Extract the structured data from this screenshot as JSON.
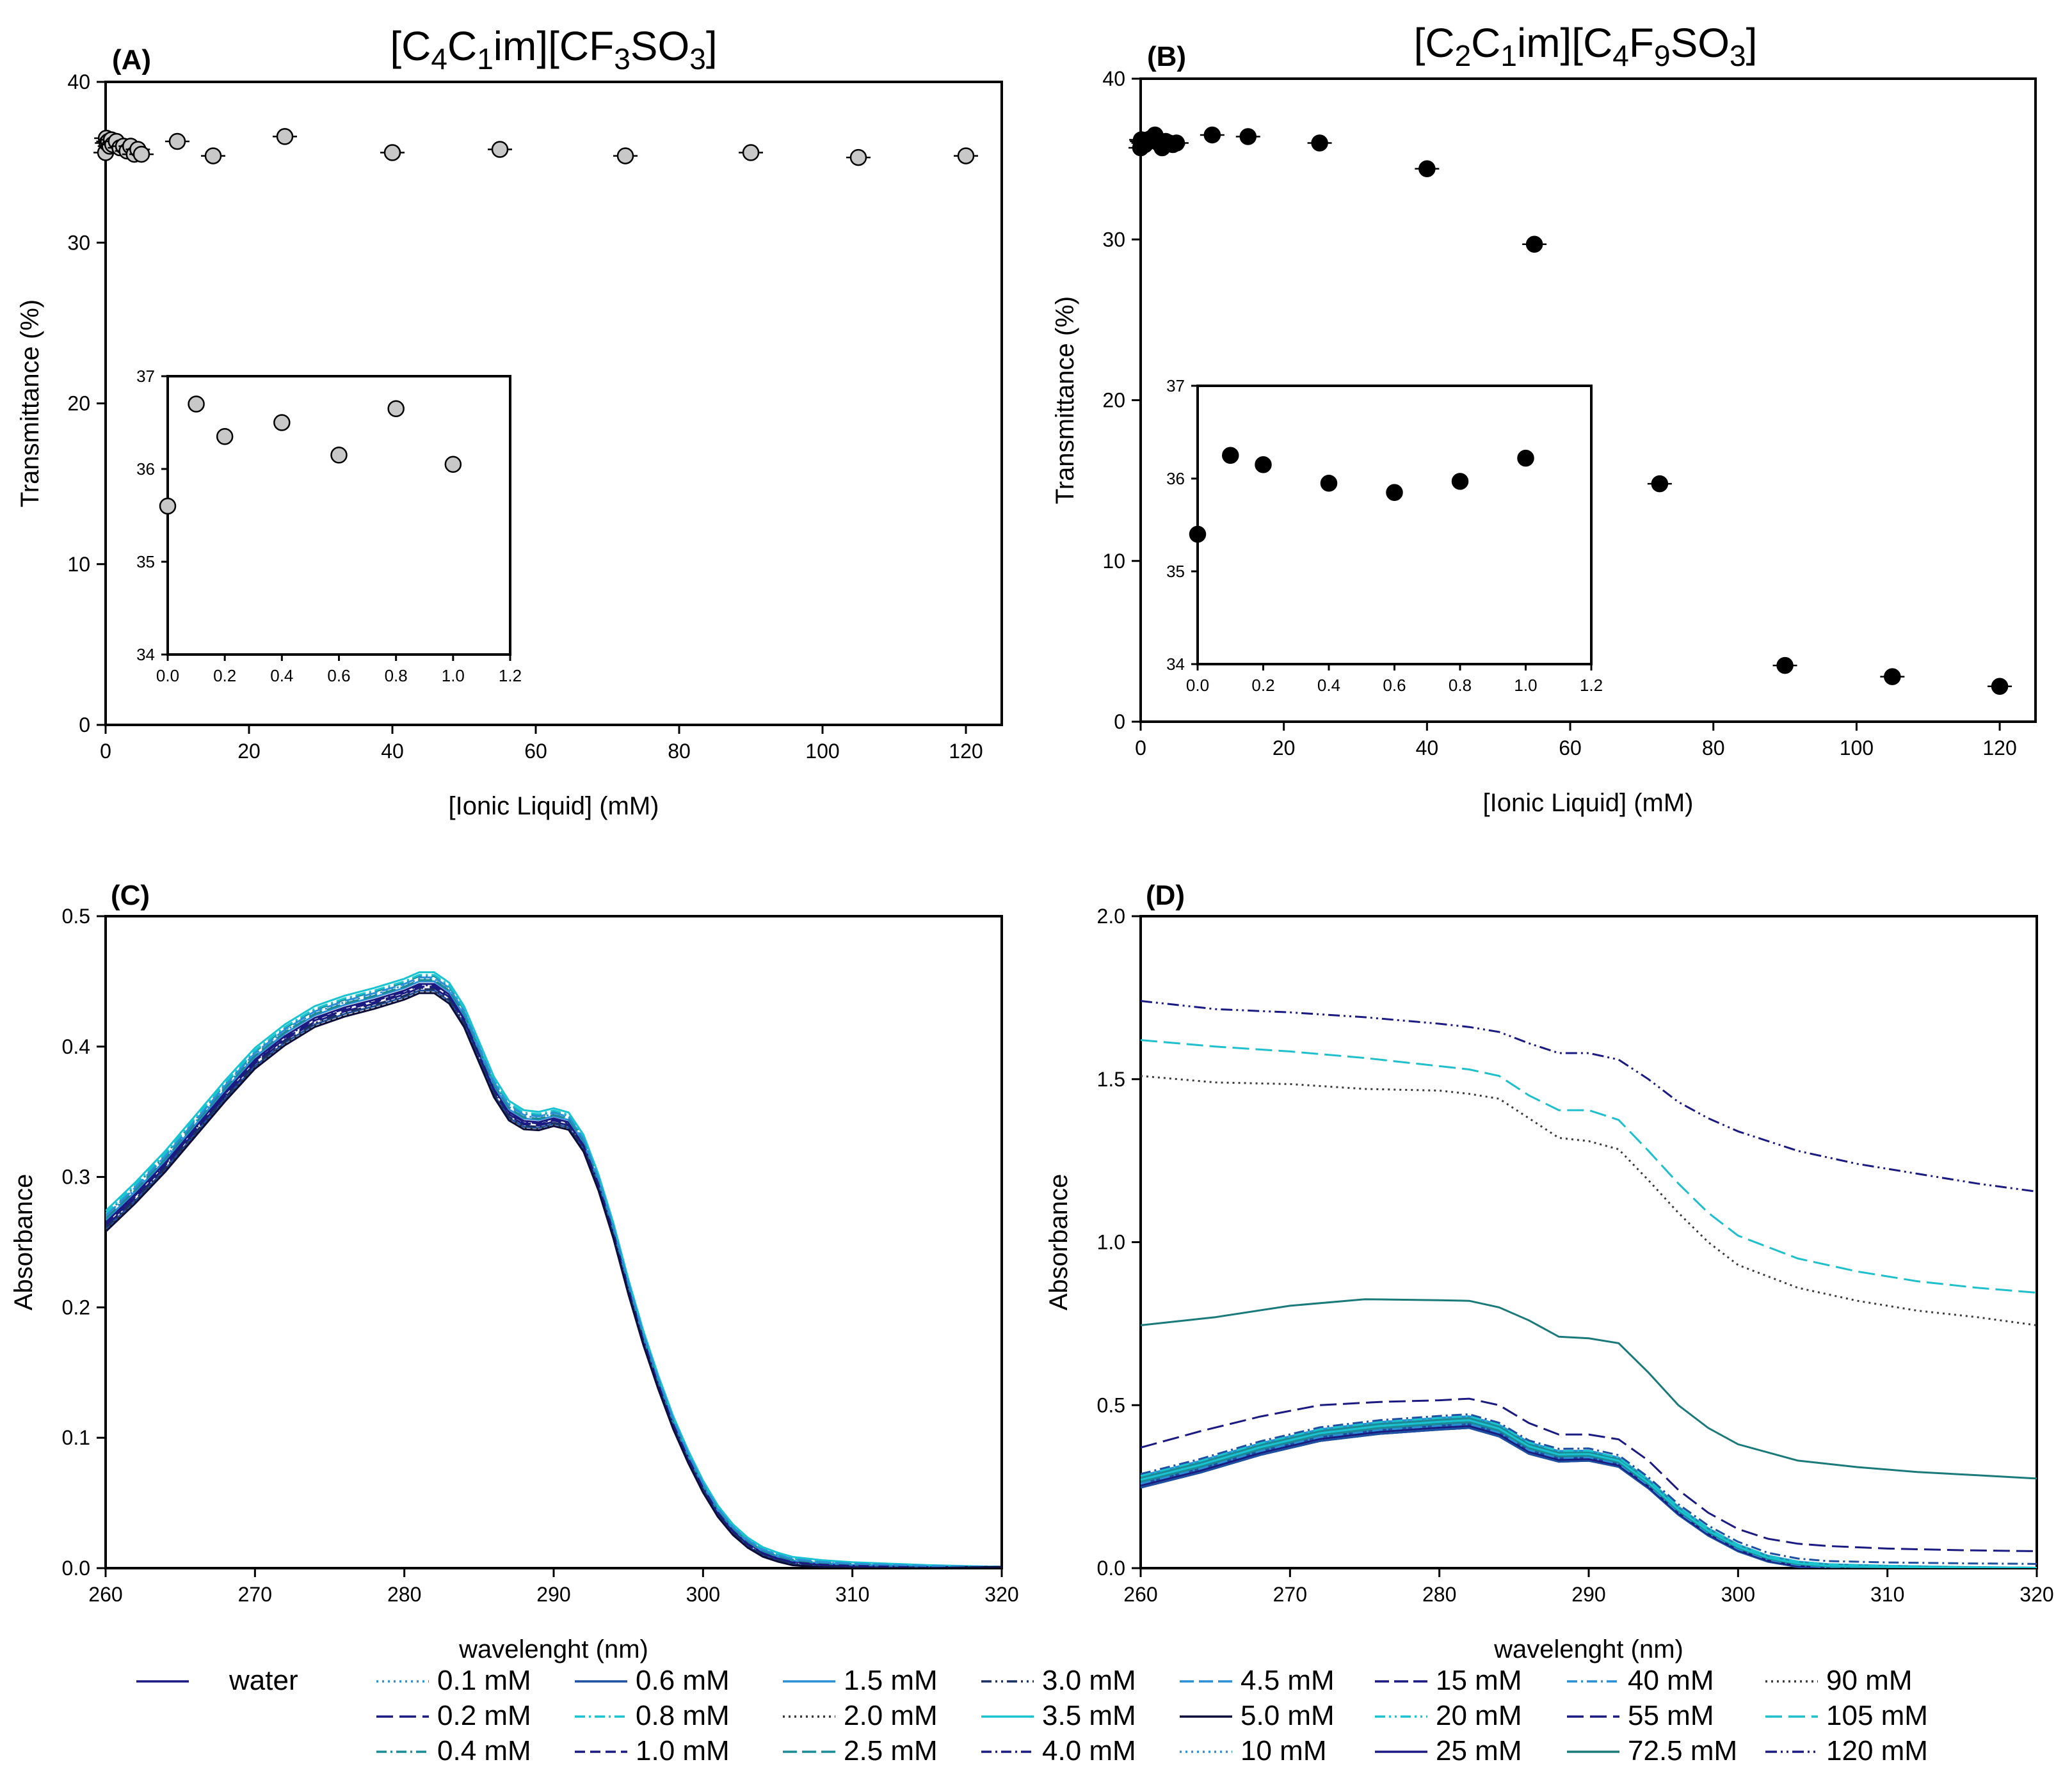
{
  "chart_data": [
    {
      "panel": "(A)",
      "type": "scatter",
      "title": "[C4C1im][CF3SO3]",
      "title_parts": [
        "[C",
        "4",
        "C",
        "1",
        "im][CF",
        "3",
        "SO",
        "3",
        "]"
      ],
      "xlabel": "[Ionic Liquid] (mM)",
      "ylabel": "Transmittance (%)",
      "xlim": [
        0,
        125
      ],
      "ylim": [
        0,
        40
      ],
      "xticks": [
        0,
        20,
        40,
        60,
        80,
        100,
        120
      ],
      "yticks": [
        0,
        10,
        20,
        30,
        40
      ],
      "marker": "grey-circle",
      "x": [
        0,
        0.1,
        0.2,
        0.4,
        0.6,
        0.8,
        1.0,
        1.5,
        2.0,
        2.5,
        3.0,
        3.5,
        4.0,
        4.5,
        5.0,
        10,
        15,
        25,
        40,
        55,
        72.5,
        90,
        105,
        120
      ],
      "y": [
        35.6,
        36.5,
        36.2,
        36.3,
        36.0,
        36.4,
        36.1,
        36.3,
        35.9,
        36.0,
        35.7,
        36.0,
        35.5,
        35.8,
        35.5,
        36.3,
        35.4,
        36.6,
        35.6,
        35.8,
        35.4,
        35.6,
        35.3,
        35.4
      ],
      "inset": {
        "xlim": [
          0,
          1.2
        ],
        "ylim": [
          34,
          37
        ],
        "xticks": [
          "0.0",
          "0.2",
          "0.4",
          "0.6",
          "0.8",
          "1.0",
          "1.2"
        ],
        "yticks": [
          "34",
          "35",
          "36",
          "37"
        ],
        "x": [
          0,
          0.1,
          0.2,
          0.4,
          0.6,
          0.8,
          1.0
        ],
        "y": [
          35.6,
          36.7,
          36.35,
          36.5,
          36.15,
          36.65,
          36.05
        ]
      }
    },
    {
      "panel": "(B)",
      "type": "scatter",
      "title": "[C2C1im][C4F9SO3]",
      "title_parts": [
        "[C",
        "2",
        "C",
        "1",
        "im][C",
        "4",
        "F",
        "9",
        "SO",
        "3",
        "]"
      ],
      "xlabel": "[Ionic Liquid] (mM)",
      "ylabel": "Transmittance (%)",
      "xlim": [
        0,
        125
      ],
      "ylim": [
        0,
        40
      ],
      "xticks": [
        0,
        20,
        40,
        60,
        80,
        100,
        120
      ],
      "yticks": [
        0,
        10,
        20,
        30,
        40
      ],
      "marker": "black-circle",
      "x": [
        0,
        0.1,
        0.2,
        0.4,
        0.6,
        0.8,
        1.0,
        1.5,
        2.0,
        2.5,
        3.0,
        3.5,
        4.0,
        4.5,
        5.0,
        10,
        15,
        25,
        40,
        55,
        72.5,
        90,
        105,
        120
      ],
      "y": [
        35.7,
        36.2,
        36.1,
        36.0,
        35.9,
        36.0,
        36.2,
        36.3,
        36.5,
        36.0,
        35.7,
        36.1,
        36.0,
        35.9,
        36.0,
        36.5,
        36.4,
        36.0,
        34.4,
        29.7,
        14.8,
        3.5,
        2.8,
        2.2
      ],
      "inset": {
        "xlim": [
          0,
          1.2
        ],
        "ylim": [
          34,
          37
        ],
        "xticks": [
          "0.0",
          "0.2",
          "0.4",
          "0.6",
          "0.8",
          "1.0",
          "1.2"
        ],
        "yticks": [
          "34",
          "35",
          "36",
          "37"
        ],
        "x": [
          0,
          0.1,
          0.2,
          0.4,
          0.6,
          0.8,
          1.0
        ],
        "y": [
          35.4,
          36.25,
          36.15,
          35.95,
          35.85,
          35.97,
          36.22
        ]
      }
    },
    {
      "panel": "(C)",
      "type": "line",
      "xlabel": "wavelenght (nm)",
      "ylabel": "Absorbance",
      "xlim": [
        260,
        320
      ],
      "ylim": [
        0,
        0.5
      ],
      "xticks": [
        260,
        270,
        280,
        290,
        300,
        310,
        320
      ],
      "yticks": [
        "0.0",
        "0.1",
        "0.2",
        "0.3",
        "0.4",
        "0.5"
      ],
      "base_spectrum": {
        "x": [
          260,
          262,
          264,
          266,
          268,
          270,
          272,
          274,
          276,
          278,
          280,
          281,
          282,
          283,
          284,
          285,
          286,
          287,
          288,
          289,
          290,
          291,
          292,
          293,
          294,
          295,
          296,
          297,
          298,
          299,
          300,
          301,
          302,
          303,
          304,
          305,
          306,
          308,
          310,
          315,
          320
        ],
        "y": [
          0.265,
          0.287,
          0.311,
          0.338,
          0.365,
          0.39,
          0.408,
          0.422,
          0.43,
          0.436,
          0.443,
          0.448,
          0.448,
          0.44,
          0.422,
          0.395,
          0.368,
          0.35,
          0.343,
          0.342,
          0.345,
          0.342,
          0.325,
          0.295,
          0.258,
          0.215,
          0.176,
          0.142,
          0.111,
          0.085,
          0.062,
          0.043,
          0.029,
          0.019,
          0.012,
          0.008,
          0.005,
          0.003,
          0.002,
          0.001,
          0.001
        ]
      },
      "series": [
        {
          "name": "water",
          "offset": 0.0,
          "color": "#1a1a80",
          "dash": ""
        },
        {
          "name": "0.1 mM",
          "offset": 0.004,
          "color": "#2b8fd6",
          "dash": "3,6"
        },
        {
          "name": "0.2 mM",
          "offset": -0.003,
          "color": "#1a1a80",
          "dash": "26,10"
        },
        {
          "name": "0.4 mM",
          "offset": 0.006,
          "color": "#1a8a94",
          "dash": "16,6,3,6"
        },
        {
          "name": "0.6 mM",
          "offset": -0.005,
          "color": "#1f4fa0",
          "dash": ""
        },
        {
          "name": "0.8 mM",
          "offset": 0.007,
          "color": "#19c3cf",
          "dash": "16,6,3,6"
        },
        {
          "name": "1.0 mM",
          "offset": -0.002,
          "color": "#1a1a80",
          "dash": "16,8"
        },
        {
          "name": "1.5 mM",
          "offset": 0.002,
          "color": "#2b8fd6",
          "dash": ""
        },
        {
          "name": "2.0 mM",
          "offset": -0.006,
          "color": "#333333",
          "dash": "3,6"
        },
        {
          "name": "2.5 mM",
          "offset": 0.003,
          "color": "#1a8a94",
          "dash": "22,8"
        },
        {
          "name": "3.0 mM",
          "offset": -0.004,
          "color": "#1a3060",
          "dash": "16,6,3,6,3,6"
        },
        {
          "name": "3.5 mM",
          "offset": 0.009,
          "color": "#19c3cf",
          "dash": ""
        },
        {
          "name": "4.0 mM",
          "offset": -0.001,
          "color": "#1a1a80",
          "dash": "16,6,3,6"
        },
        {
          "name": "4.5 mM",
          "offset": 0.005,
          "color": "#2b8fd6",
          "dash": "22,8"
        },
        {
          "name": "5.0 mM",
          "offset": -0.007,
          "color": "#0d0d3a",
          "dash": ""
        }
      ]
    },
    {
      "panel": "(D)",
      "type": "line",
      "xlabel": "wavelenght (nm)",
      "ylabel": "Absorbance",
      "xlim": [
        260,
        320
      ],
      "ylim": [
        0,
        2.0
      ],
      "xticks": [
        260,
        270,
        280,
        290,
        300,
        310,
        320
      ],
      "yticks": [
        "0.0",
        "0.5",
        "1.0",
        "1.5",
        "2.0"
      ],
      "low_series": {
        "x": [
          260,
          264,
          268,
          272,
          276,
          280,
          282,
          284,
          286,
          288,
          290,
          292,
          294,
          296,
          298,
          300,
          302,
          304,
          306,
          310,
          315,
          320
        ],
        "y": [
          0.265,
          0.311,
          0.365,
          0.408,
          0.43,
          0.443,
          0.448,
          0.422,
          0.368,
          0.343,
          0.345,
          0.325,
          0.258,
          0.176,
          0.111,
          0.062,
          0.029,
          0.012,
          0.005,
          0.002,
          0.001,
          0.001
        ],
        "names": [
          "water",
          "0.1 mM",
          "0.2 mM",
          "0.4 mM",
          "0.6 mM",
          "0.8 mM",
          "1.0 mM",
          "1.5 mM",
          "2.0 mM",
          "2.5 mM",
          "3.0 mM",
          "3.5 mM",
          "4.0 mM",
          "4.5 mM",
          "5.0 mM",
          "10 mM",
          "15 mM",
          "20 mM",
          "25 mM",
          "40 mM"
        ]
      },
      "series": [
        {
          "name": "55 mM",
          "color": "#1a1a80",
          "dash": "26,10",
          "x": [
            260,
            264,
            268,
            272,
            276,
            280,
            282,
            284,
            286,
            288,
            290,
            292,
            294,
            296,
            298,
            300,
            302,
            304,
            306,
            310,
            315,
            320
          ],
          "y": [
            0.37,
            0.42,
            0.465,
            0.5,
            0.51,
            0.515,
            0.52,
            0.5,
            0.445,
            0.41,
            0.41,
            0.395,
            0.33,
            0.24,
            0.17,
            0.12,
            0.09,
            0.075,
            0.068,
            0.06,
            0.055,
            0.052
          ]
        },
        {
          "name": "72.5 mM",
          "color": "#1a7a7a",
          "dash": "",
          "x": [
            260,
            265,
            270,
            275,
            280,
            282,
            284,
            286,
            288,
            290,
            292,
            294,
            296,
            298,
            300,
            304,
            308,
            312,
            316,
            320
          ],
          "y": [
            0.745,
            0.77,
            0.805,
            0.825,
            0.822,
            0.82,
            0.8,
            0.76,
            0.71,
            0.705,
            0.69,
            0.6,
            0.5,
            0.43,
            0.38,
            0.33,
            0.31,
            0.295,
            0.285,
            0.275
          ]
        },
        {
          "name": "90 mM",
          "color": "#3a3a3a",
          "dash": "3,6",
          "x": [
            260,
            265,
            270,
            275,
            280,
            282,
            284,
            286,
            288,
            290,
            292,
            294,
            296,
            298,
            300,
            304,
            308,
            312,
            316,
            320
          ],
          "y": [
            1.51,
            1.49,
            1.485,
            1.47,
            1.465,
            1.455,
            1.44,
            1.38,
            1.32,
            1.31,
            1.285,
            1.19,
            1.09,
            1.0,
            0.93,
            0.86,
            0.82,
            0.79,
            0.77,
            0.745
          ]
        },
        {
          "name": "105 mM",
          "color": "#1fbfcc",
          "dash": "26,10",
          "x": [
            260,
            265,
            270,
            275,
            280,
            282,
            284,
            286,
            288,
            290,
            292,
            294,
            296,
            298,
            300,
            304,
            308,
            312,
            316,
            320
          ],
          "y": [
            1.62,
            1.6,
            1.585,
            1.565,
            1.54,
            1.53,
            1.51,
            1.45,
            1.405,
            1.405,
            1.375,
            1.28,
            1.18,
            1.09,
            1.02,
            0.95,
            0.91,
            0.88,
            0.86,
            0.845
          ]
        },
        {
          "name": "120 mM",
          "color": "#1a1a80",
          "dash": "18,6,3,6,3,6",
          "x": [
            260,
            265,
            270,
            275,
            280,
            282,
            284,
            286,
            288,
            290,
            292,
            294,
            296,
            298,
            300,
            304,
            308,
            312,
            316,
            320
          ],
          "y": [
            1.74,
            1.715,
            1.705,
            1.69,
            1.67,
            1.66,
            1.645,
            1.61,
            1.58,
            1.58,
            1.56,
            1.5,
            1.43,
            1.38,
            1.34,
            1.28,
            1.24,
            1.21,
            1.18,
            1.155
          ]
        }
      ]
    }
  ],
  "legend": [
    {
      "name": "water",
      "color": "#1a1a80",
      "dash": ""
    },
    {
      "name": "0.1 mM",
      "color": "#2b8fd6",
      "dash": "3,6"
    },
    {
      "name": "0.6 mM",
      "color": "#1f4fa0",
      "dash": ""
    },
    {
      "name": "1.5 mM",
      "color": "#2b8fd6",
      "dash": ""
    },
    {
      "name": "3.0 mM",
      "color": "#1a3060",
      "dash": "16,6,3,6,3,6"
    },
    {
      "name": "4.5 mM",
      "color": "#2b8fd6",
      "dash": "22,8"
    },
    {
      "name": "15 mM",
      "color": "#1a1a80",
      "dash": "22,8"
    },
    {
      "name": "40 mM",
      "color": "#2b8fd6",
      "dash": "16,6,3,6"
    },
    {
      "name": "90 mM",
      "color": "#3a3a3a",
      "dash": "3,6"
    },
    {
      "name": "0.2 mM",
      "color": "#1a1a80",
      "dash": "26,10"
    },
    {
      "name": "0.8 mM",
      "color": "#19c3cf",
      "dash": "16,6,3,6"
    },
    {
      "name": "2.0 mM",
      "color": "#333333",
      "dash": "3,6"
    },
    {
      "name": "3.5 mM",
      "color": "#19c3cf",
      "dash": ""
    },
    {
      "name": "5.0 mM",
      "color": "#0d0d3a",
      "dash": ""
    },
    {
      "name": "20 mM",
      "color": "#19c3cf",
      "dash": "16,6,3,6,3,6"
    },
    {
      "name": "55 mM",
      "color": "#1a1a80",
      "dash": "26,10"
    },
    {
      "name": "105 mM",
      "color": "#1fbfcc",
      "dash": "26,10"
    },
    {
      "name": "0.4 mM",
      "color": "#1a8a94",
      "dash": "16,6,3,6"
    },
    {
      "name": "1.0 mM",
      "color": "#1a1a80",
      "dash": "16,8"
    },
    {
      "name": "2.5 mM",
      "color": "#1a8a94",
      "dash": "22,8"
    },
    {
      "name": "4.0 mM",
      "color": "#1a1a80",
      "dash": "16,6,3,6"
    },
    {
      "name": "10 mM",
      "color": "#2b8fd6",
      "dash": "3,6"
    },
    {
      "name": "25 mM",
      "color": "#1a1a80",
      "dash": ""
    },
    {
      "name": "72.5 mM",
      "color": "#1a7a7a",
      "dash": ""
    },
    {
      "name": "120 mM",
      "color": "#1a1a80",
      "dash": "18,6,3,6,3,6"
    }
  ]
}
